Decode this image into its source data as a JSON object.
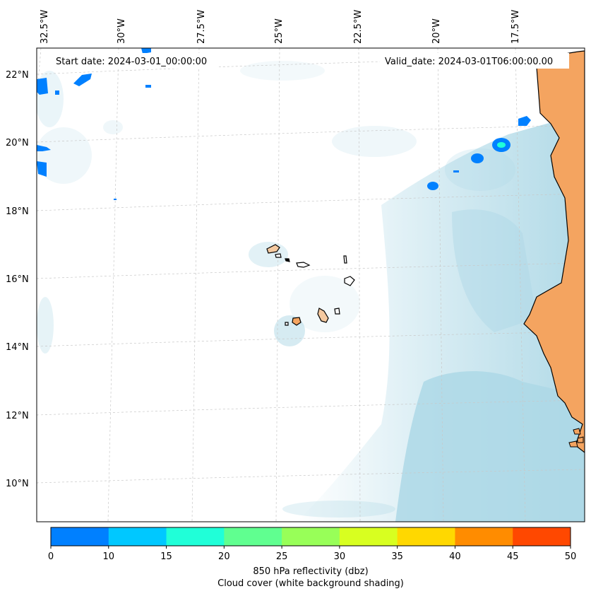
{
  "map": {
    "start_date_text": "Start date: 2024-03-01_00:00:00",
    "valid_date_text": "Valid_date: 2024-03-01T06:00:00.00",
    "longitude_labels": [
      "32.5°W",
      "30°W",
      "27.5°W",
      "25°W",
      "22.5°W",
      "20°W",
      "17.5°W"
    ],
    "latitude_labels": [
      "22°N",
      "20°N",
      "18°N",
      "16°N",
      "14°N",
      "12°N",
      "10°N"
    ],
    "colors": {
      "land": "#f4a460",
      "ocean": "#ffffff",
      "cloud_shading": "#add8e6",
      "coastline": "#000000",
      "gridline": "#c8c8c8"
    }
  },
  "colorbar": {
    "ticks": [
      "0",
      "10",
      "15",
      "20",
      "25",
      "30",
      "35",
      "40",
      "45",
      "50"
    ],
    "colors": [
      "#0080ff",
      "#00c8ff",
      "#20ffd8",
      "#60ff90",
      "#98ff58",
      "#d8ff20",
      "#ffd800",
      "#ff8c00",
      "#ff4800"
    ],
    "label_line1": "850 hPa reflectivity (dbz)",
    "label_line2": "Cloud cover (white background shading)"
  }
}
